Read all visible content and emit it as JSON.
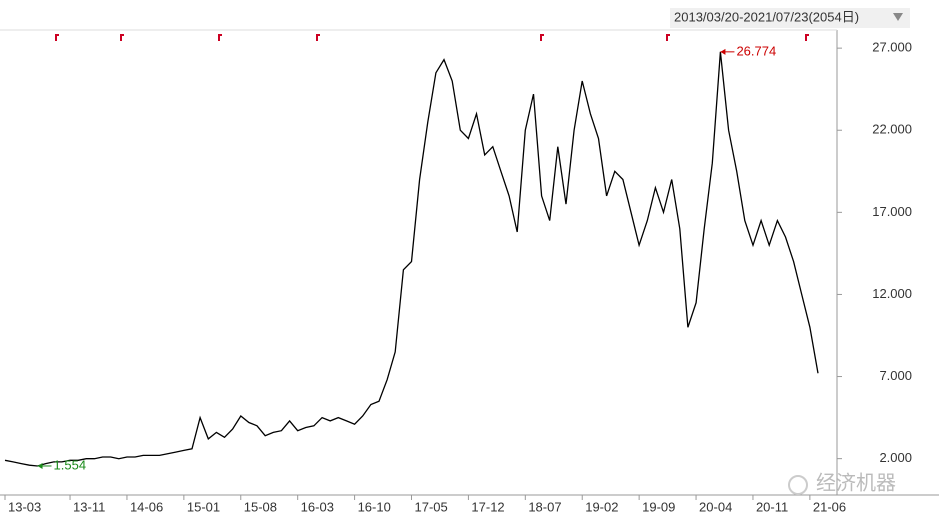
{
  "chart_data": {
    "type": "line",
    "date_range": "2013/03/20-2021/07/23(2054日)",
    "watermark": "经济机器",
    "categories": [
      "13-03",
      null,
      null,
      null,
      null,
      null,
      null,
      null,
      "13-11",
      null,
      null,
      null,
      null,
      null,
      null,
      "14-06",
      null,
      null,
      null,
      null,
      null,
      null,
      "15-01",
      null,
      null,
      null,
      null,
      null,
      null,
      "15-08",
      null,
      null,
      null,
      null,
      null,
      null,
      "16-03",
      null,
      null,
      null,
      null,
      null,
      null,
      "16-10",
      null,
      null,
      null,
      null,
      null,
      null,
      "17-05",
      null,
      null,
      null,
      null,
      null,
      null,
      "17-12",
      null,
      null,
      null,
      null,
      null,
      null,
      "18-07",
      null,
      null,
      null,
      null,
      null,
      null,
      "19-02",
      null,
      null,
      null,
      null,
      null,
      null,
      "19-09",
      null,
      null,
      null,
      null,
      null,
      null,
      "20-04",
      null,
      null,
      null,
      null,
      null,
      null,
      "20-11",
      null,
      null,
      null,
      null,
      null,
      null,
      "21-06",
      null
    ],
    "series": [
      {
        "color": "#000000",
        "values": [
          1.9,
          1.8,
          1.7,
          1.6,
          1.554,
          1.7,
          1.8,
          1.8,
          1.9,
          1.9,
          2.0,
          2.0,
          2.1,
          2.1,
          2.0,
          2.1,
          2.1,
          2.2,
          2.2,
          2.2,
          2.3,
          2.4,
          2.5,
          2.6,
          4.5,
          3.2,
          3.6,
          3.3,
          3.8,
          4.6,
          4.2,
          4.0,
          3.4,
          3.6,
          3.7,
          4.3,
          3.7,
          3.9,
          4.0,
          4.5,
          4.3,
          4.5,
          4.3,
          4.1,
          4.6,
          5.3,
          5.5,
          6.8,
          8.5,
          13.5,
          14.0,
          19.0,
          22.5,
          25.5,
          26.3,
          25.0,
          22.0,
          21.5,
          23.0,
          20.5,
          21.0,
          19.5,
          18.0,
          15.8,
          22.0,
          24.2,
          18.0,
          16.5,
          21.0,
          17.5,
          22.0,
          25.0,
          23.0,
          21.5,
          18.0,
          19.5,
          19.0,
          17.0,
          15.0,
          16.5,
          18.5,
          17.0,
          19.0,
          16.0,
          10.0,
          11.5,
          16.0,
          20.0,
          26.774,
          22.0,
          19.5,
          16.5,
          15.0,
          16.5,
          15.0,
          16.5,
          15.5,
          14.0,
          12.0,
          10.0,
          7.2
        ]
      }
    ],
    "max_index": 88,
    "max_color": "#cc0000",
    "min_index": 4,
    "min_color": "#1a8a1a",
    "ylim": [
      0.7,
      27.8
    ],
    "yticks": [
      {
        "value": 2,
        "label": "2.000"
      },
      {
        "value": 7,
        "label": "7.000"
      },
      {
        "value": 12,
        "label": "12.000"
      },
      {
        "value": 17,
        "label": "17.000"
      },
      {
        "value": 22,
        "label": "22.000"
      },
      {
        "value": 27,
        "label": "27.000"
      }
    ]
  }
}
